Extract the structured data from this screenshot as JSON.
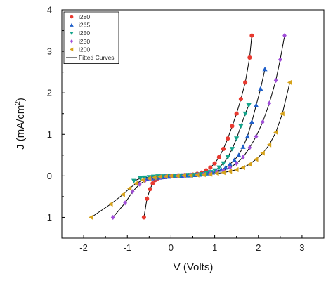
{
  "chart_data": {
    "type": "scatter",
    "xlabel": "V (Volts)",
    "ylabel_main": "J (mA/cm",
    "ylabel_sup": "2",
    "ylabel_tail": ")",
    "xlim": [
      -2.5,
      3.5
    ],
    "ylim": [
      -1.5,
      4
    ],
    "xticks": [
      -2,
      -1,
      0,
      1,
      2,
      3
    ],
    "yticks": [
      -1,
      0,
      1,
      2,
      3,
      4
    ],
    "xtick_labels": [
      "-2",
      "-1",
      "0",
      "1",
      "2",
      "3"
    ],
    "ytick_labels": [
      "-1",
      "0",
      "1",
      "2",
      "3",
      "4"
    ],
    "legend_position": "top-left",
    "fit_label": "Fitted Curves",
    "fit_color": "#000000",
    "series": [
      {
        "name": "i280",
        "marker": "circle",
        "color": "#e8392f",
        "x": [
          -0.62,
          -0.55,
          -0.48,
          -0.42,
          -0.36,
          -0.3,
          -0.24,
          -0.18,
          -0.12,
          -0.06,
          0.0,
          0.06,
          0.12,
          0.18,
          0.25,
          0.32,
          0.4,
          0.5,
          0.6,
          0.7,
          0.8,
          0.9,
          1.0,
          1.1,
          1.2,
          1.3,
          1.4,
          1.5,
          1.6,
          1.7,
          1.8,
          1.85
        ],
        "y": [
          -1.0,
          -0.55,
          -0.32,
          -0.18,
          -0.1,
          -0.06,
          -0.04,
          -0.03,
          -0.02,
          -0.01,
          0.0,
          0.0,
          0.0,
          0.01,
          0.01,
          0.02,
          0.02,
          0.03,
          0.05,
          0.08,
          0.13,
          0.2,
          0.3,
          0.45,
          0.65,
          0.9,
          1.2,
          1.5,
          1.85,
          2.25,
          2.85,
          3.38
        ]
      },
      {
        "name": "i265",
        "marker": "triangle-up",
        "color": "#1f5fc9",
        "x": [
          -0.55,
          -0.45,
          -0.35,
          -0.25,
          -0.15,
          -0.05,
          0.05,
          0.15,
          0.25,
          0.35,
          0.45,
          0.55,
          0.65,
          0.75,
          0.85,
          0.95,
          1.05,
          1.15,
          1.25,
          1.35,
          1.45,
          1.55,
          1.65,
          1.75,
          1.85,
          1.95,
          2.05,
          2.15
        ],
        "y": [
          -0.08,
          -0.06,
          -0.05,
          -0.04,
          -0.03,
          -0.02,
          -0.01,
          0.0,
          0.0,
          0.01,
          0.01,
          0.02,
          0.03,
          0.04,
          0.06,
          0.08,
          0.11,
          0.15,
          0.2,
          0.28,
          0.38,
          0.5,
          0.7,
          0.95,
          1.3,
          1.7,
          2.1,
          2.57
        ]
      },
      {
        "name": "i250",
        "marker": "triangle-down",
        "color": "#12a38a",
        "x": [
          -0.85,
          -0.7,
          -0.6,
          -0.5,
          -0.4,
          -0.3,
          -0.2,
          -0.1,
          0.0,
          0.1,
          0.2,
          0.3,
          0.4,
          0.5,
          0.6,
          0.7,
          0.8,
          0.9,
          1.0,
          1.1,
          1.2,
          1.3,
          1.4,
          1.5,
          1.6,
          1.7,
          1.78
        ],
        "y": [
          -0.12,
          -0.06,
          -0.04,
          -0.03,
          -0.02,
          -0.01,
          -0.01,
          0.0,
          0.0,
          0.0,
          0.01,
          0.01,
          0.02,
          0.02,
          0.03,
          0.04,
          0.06,
          0.09,
          0.13,
          0.2,
          0.3,
          0.45,
          0.65,
          0.9,
          1.2,
          1.5,
          1.7
        ]
      },
      {
        "name": "i230",
        "marker": "diamond",
        "color": "#a04ed8",
        "x": [
          -1.33,
          -1.05,
          -0.88,
          -0.72,
          -0.6,
          -0.48,
          -0.36,
          -0.24,
          -0.12,
          0.0,
          0.15,
          0.3,
          0.45,
          0.6,
          0.75,
          0.9,
          1.05,
          1.2,
          1.35,
          1.5,
          1.65,
          1.8,
          1.95,
          2.1,
          2.25,
          2.4,
          2.5,
          2.6
        ],
        "y": [
          -1.0,
          -0.65,
          -0.38,
          -0.2,
          -0.12,
          -0.08,
          -0.05,
          -0.03,
          -0.02,
          0.0,
          0.0,
          0.01,
          0.02,
          0.03,
          0.04,
          0.06,
          0.09,
          0.13,
          0.2,
          0.3,
          0.45,
          0.68,
          0.95,
          1.3,
          1.75,
          2.3,
          2.8,
          3.38
        ]
      },
      {
        "name": "i200",
        "marker": "triangle-left",
        "color": "#d6a21b",
        "x": [
          -1.83,
          -1.38,
          -1.1,
          -0.95,
          -0.8,
          -0.65,
          -0.5,
          -0.38,
          -0.25,
          -0.12,
          0.0,
          0.15,
          0.3,
          0.45,
          0.6,
          0.75,
          0.9,
          1.05,
          1.2,
          1.35,
          1.5,
          1.65,
          1.8,
          1.95,
          2.1,
          2.25,
          2.4,
          2.55,
          2.72
        ],
        "y": [
          -1.0,
          -0.68,
          -0.45,
          -0.3,
          -0.18,
          -0.1,
          -0.06,
          -0.04,
          -0.02,
          -0.01,
          0.0,
          0.0,
          0.01,
          0.01,
          0.02,
          0.03,
          0.04,
          0.06,
          0.08,
          0.11,
          0.15,
          0.2,
          0.28,
          0.4,
          0.55,
          0.75,
          1.05,
          1.5,
          2.25
        ]
      }
    ]
  }
}
